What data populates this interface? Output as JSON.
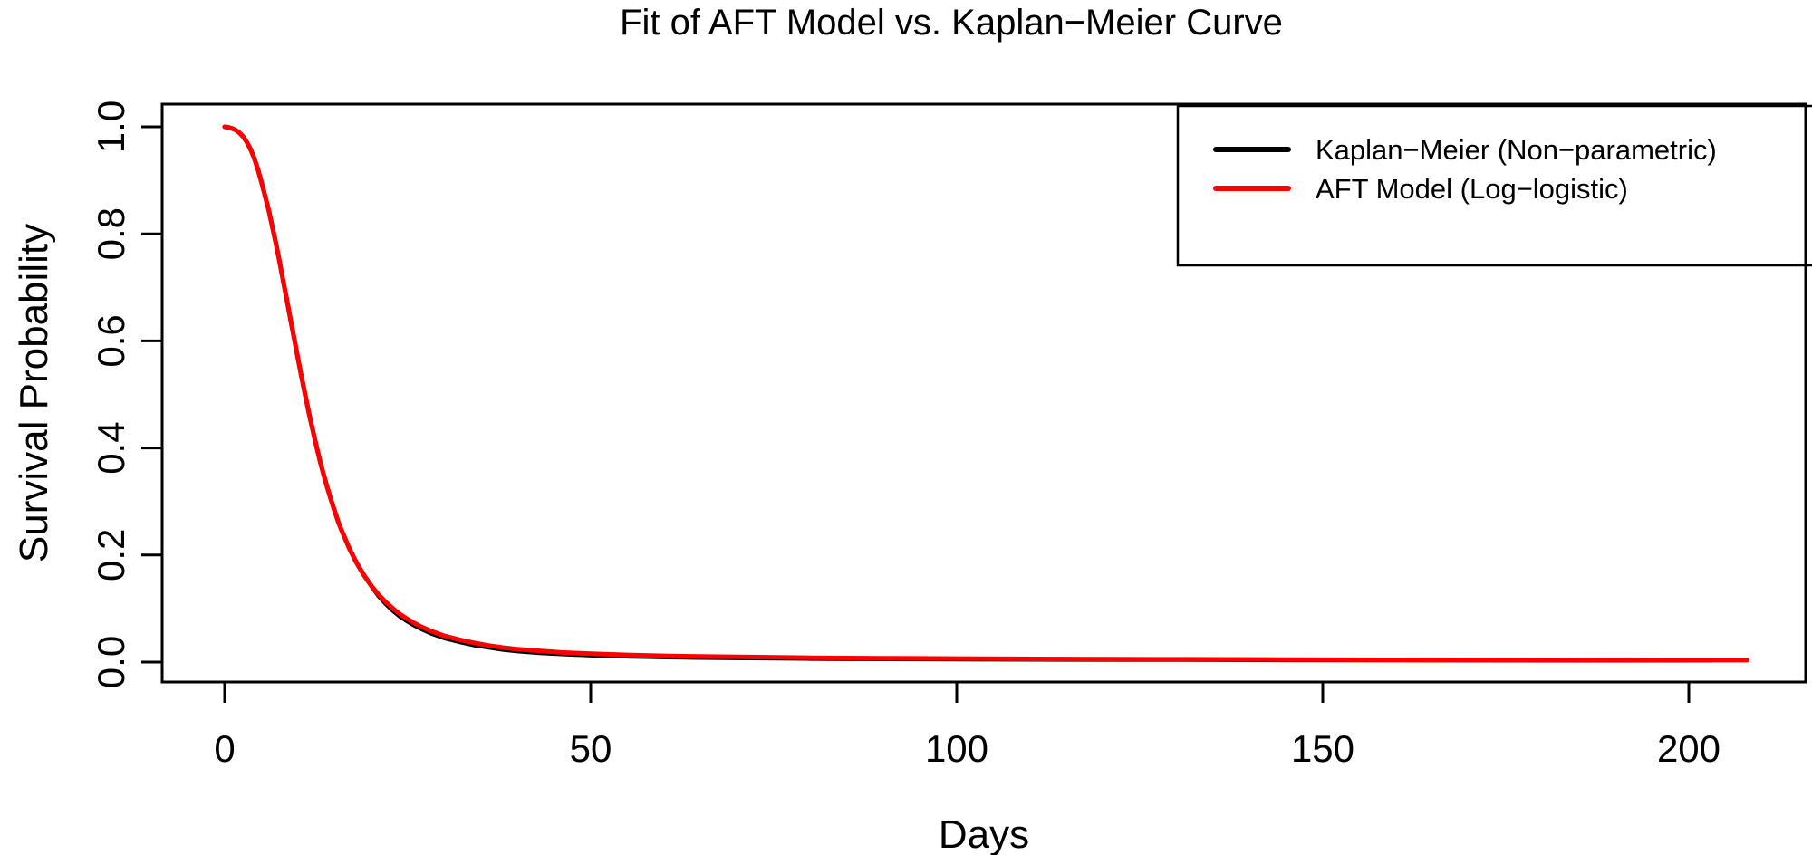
{
  "title": "Fit of AFT Model vs. Kaplan−Meier Curve",
  "axes": {
    "x": {
      "label": "Days",
      "tick_labels": [
        "0",
        "50",
        "100",
        "150",
        "200"
      ],
      "tick_values": [
        0,
        50,
        100,
        150,
        200
      ]
    },
    "y": {
      "label": "Survival Probability",
      "tick_labels": [
        "0.0",
        "0.2",
        "0.4",
        "0.6",
        "0.8",
        "1.0"
      ],
      "tick_values": [
        0.0,
        0.2,
        0.4,
        0.6,
        0.8,
        1.0
      ]
    }
  },
  "legend": {
    "position": "topright",
    "entries": [
      {
        "label": "Kaplan−Meier (Non−parametric)",
        "color": "#000000"
      },
      {
        "label": "AFT Model (Log−logistic)",
        "color": "#FF0000"
      }
    ]
  },
  "colors": {
    "km_curve": "#000000",
    "aft_curve": "#FF0000",
    "frame": "#000000",
    "background": "#FFFFFF"
  },
  "chart_data": {
    "type": "line",
    "title": "Fit of AFT Model vs. Kaplan−Meier Curve",
    "xlabel": "Days",
    "ylabel": "Survival Probability",
    "xlim": [
      -8.5,
      216.5
    ],
    "ylim": [
      -0.04,
      1.04
    ],
    "x_ticks": [
      0,
      50,
      100,
      150,
      200
    ],
    "y_ticks": [
      0.0,
      0.2,
      0.4,
      0.6,
      0.8,
      1.0
    ],
    "grid": false,
    "legend_position": "topright",
    "series": [
      {
        "name": "Kaplan−Meier (Non−parametric)",
        "color": "#000000",
        "points": [
          [
            0,
            1.0
          ],
          [
            0.5,
            0.999
          ],
          [
            1,
            0.997
          ],
          [
            1.5,
            0.994
          ],
          [
            2,
            0.989
          ],
          [
            2.5,
            0.982
          ],
          [
            3,
            0.972
          ],
          [
            3.5,
            0.959
          ],
          [
            4,
            0.943
          ],
          [
            4.5,
            0.922
          ],
          [
            5,
            0.898
          ],
          [
            5.5,
            0.872
          ],
          [
            6,
            0.845
          ],
          [
            6.5,
            0.814
          ],
          [
            7,
            0.782
          ],
          [
            7.5,
            0.748
          ],
          [
            8,
            0.712
          ],
          [
            8.5,
            0.676
          ],
          [
            9,
            0.64
          ],
          [
            9.5,
            0.604
          ],
          [
            10,
            0.568
          ],
          [
            10.5,
            0.533
          ],
          [
            11,
            0.499
          ],
          [
            11.5,
            0.466
          ],
          [
            12,
            0.435
          ],
          [
            12.5,
            0.405
          ],
          [
            13,
            0.377
          ],
          [
            13.5,
            0.351
          ],
          [
            14,
            0.327
          ],
          [
            14.5,
            0.304
          ],
          [
            15,
            0.283
          ],
          [
            15.5,
            0.263
          ],
          [
            16,
            0.245
          ],
          [
            17,
            0.213
          ],
          [
            18,
            0.186
          ],
          [
            19,
            0.163
          ],
          [
            20,
            0.143
          ],
          [
            21,
            0.124
          ],
          [
            22,
            0.109
          ],
          [
            23,
            0.096
          ],
          [
            24,
            0.085
          ],
          [
            25,
            0.076
          ],
          [
            26,
            0.068
          ],
          [
            27,
            0.061
          ],
          [
            28,
            0.055
          ],
          [
            29,
            0.05
          ],
          [
            30,
            0.045
          ],
          [
            32,
            0.038
          ],
          [
            34,
            0.032
          ],
          [
            36,
            0.0275
          ],
          [
            38,
            0.0235
          ],
          [
            40,
            0.0205
          ],
          [
            43,
            0.0175
          ],
          [
            46,
            0.0152
          ],
          [
            50,
            0.0128
          ],
          [
            55,
            0.0108
          ],
          [
            60,
            0.0094
          ],
          [
            65,
            0.0084
          ],
          [
            70,
            0.0077
          ],
          [
            80,
            0.0066
          ],
          [
            90,
            0.0059
          ],
          [
            100,
            0.0054
          ],
          [
            115,
            0.0049
          ],
          [
            130,
            0.0045
          ],
          [
            145,
            0.0041
          ],
          [
            160,
            0.0038
          ],
          [
            175,
            0.0036
          ],
          [
            190,
            0.0034
          ],
          [
            203,
            0.0033
          ]
        ]
      },
      {
        "name": "AFT Model (Log−logistic)",
        "color": "#FF0000",
        "points": [
          [
            0,
            1.0
          ],
          [
            0.5,
            0.999
          ],
          [
            1,
            0.997
          ],
          [
            1.5,
            0.994
          ],
          [
            2,
            0.989
          ],
          [
            2.5,
            0.982
          ],
          [
            3,
            0.972
          ],
          [
            3.5,
            0.959
          ],
          [
            4,
            0.943
          ],
          [
            4.5,
            0.922
          ],
          [
            5,
            0.898
          ],
          [
            5.5,
            0.872
          ],
          [
            6,
            0.845
          ],
          [
            6.5,
            0.814
          ],
          [
            7,
            0.782
          ],
          [
            7.5,
            0.748
          ],
          [
            8,
            0.712
          ],
          [
            8.5,
            0.676
          ],
          [
            9,
            0.64
          ],
          [
            9.5,
            0.604
          ],
          [
            10,
            0.568
          ],
          [
            10.5,
            0.533
          ],
          [
            11,
            0.499
          ],
          [
            11.5,
            0.466
          ],
          [
            12,
            0.435
          ],
          [
            12.5,
            0.405
          ],
          [
            13,
            0.377
          ],
          [
            13.5,
            0.351
          ],
          [
            14,
            0.327
          ],
          [
            14.5,
            0.304
          ],
          [
            15,
            0.283
          ],
          [
            15.5,
            0.263
          ],
          [
            16,
            0.245
          ],
          [
            17,
            0.213
          ],
          [
            18,
            0.186
          ],
          [
            19,
            0.163
          ],
          [
            20,
            0.143
          ],
          [
            21,
            0.126
          ],
          [
            22,
            0.112
          ],
          [
            23,
            0.1
          ],
          [
            24,
            0.089
          ],
          [
            25,
            0.08
          ],
          [
            26,
            0.072
          ],
          [
            27,
            0.065
          ],
          [
            28,
            0.059
          ],
          [
            29,
            0.054
          ],
          [
            30,
            0.049
          ],
          [
            32,
            0.042
          ],
          [
            34,
            0.036
          ],
          [
            36,
            0.031
          ],
          [
            38,
            0.027
          ],
          [
            40,
            0.024
          ],
          [
            43,
            0.021
          ],
          [
            46,
            0.018
          ],
          [
            50,
            0.0155
          ],
          [
            55,
            0.0133
          ],
          [
            60,
            0.0117
          ],
          [
            65,
            0.0105
          ],
          [
            70,
            0.0096
          ],
          [
            80,
            0.0082
          ],
          [
            90,
            0.0073
          ],
          [
            100,
            0.0066
          ],
          [
            115,
            0.0058
          ],
          [
            130,
            0.0052
          ],
          [
            145,
            0.0047
          ],
          [
            160,
            0.0043
          ],
          [
            175,
            0.004
          ],
          [
            190,
            0.0037
          ],
          [
            200,
            0.0036
          ],
          [
            208,
            0.0035
          ]
        ]
      }
    ]
  }
}
